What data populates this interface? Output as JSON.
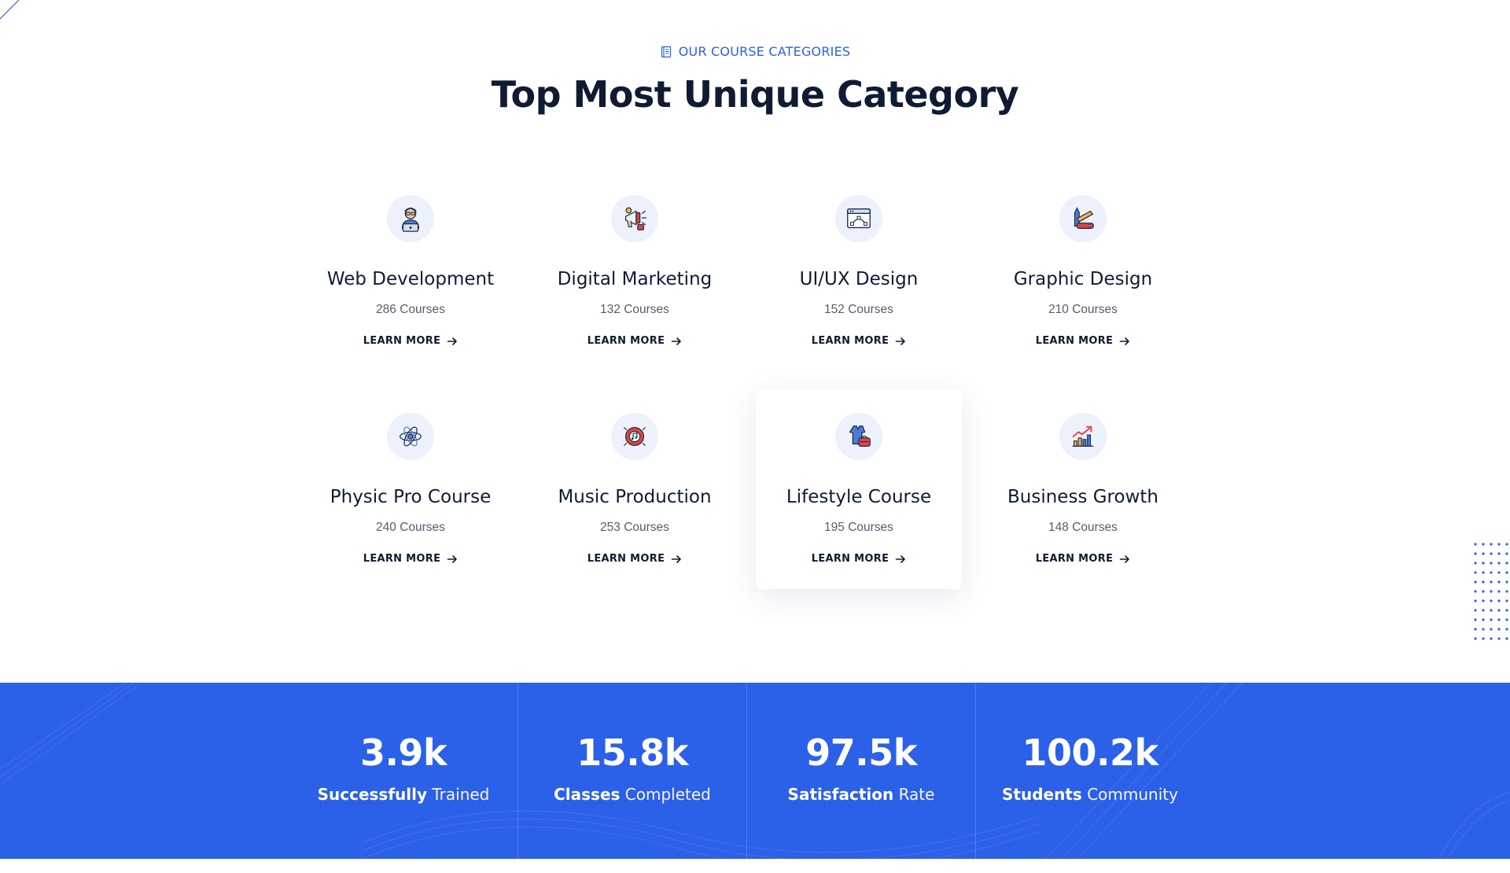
{
  "header": {
    "eyebrow": "OUR COURSE CATEGORIES",
    "title": "Top Most Unique Category"
  },
  "colors": {
    "accent": "#2b60e8",
    "heading": "#0f1b33",
    "icon_bg": "#edf1fb"
  },
  "categories": [
    {
      "title": "Web Development",
      "count": "286 Courses",
      "link": "LEARN MORE",
      "icon": "developer-icon"
    },
    {
      "title": "Digital Marketing",
      "count": "132 Courses",
      "link": "LEARN MORE",
      "icon": "megaphone-icon"
    },
    {
      "title": "UI/UX Design",
      "count": "152 Courses",
      "link": "LEARN MORE",
      "icon": "browser-design-icon"
    },
    {
      "title": "Graphic Design",
      "count": "210 Courses",
      "link": "LEARN MORE",
      "icon": "design-tools-icon"
    },
    {
      "title": "Physic Pro Course",
      "count": "240 Courses",
      "link": "LEARN MORE",
      "icon": "atom-icon"
    },
    {
      "title": "Music Production",
      "count": "253 Courses",
      "link": "LEARN MORE",
      "icon": "music-disc-icon"
    },
    {
      "title": "Lifestyle Course",
      "count": "195 Courses",
      "link": "LEARN MORE",
      "icon": "dress-bag-icon"
    },
    {
      "title": "Business Growth",
      "count": "148 Courses",
      "link": "LEARN MORE",
      "icon": "growth-chart-icon"
    }
  ],
  "stats": [
    {
      "value": "3.9k",
      "label_bold": "Successfully",
      "label_rest": "Trained"
    },
    {
      "value": "15.8k",
      "label_bold": "Classes",
      "label_rest": "Completed"
    },
    {
      "value": "97.5k",
      "label_bold": "Satisfaction",
      "label_rest": "Rate"
    },
    {
      "value": "100.2k",
      "label_bold": "Students",
      "label_rest": "Community"
    }
  ]
}
